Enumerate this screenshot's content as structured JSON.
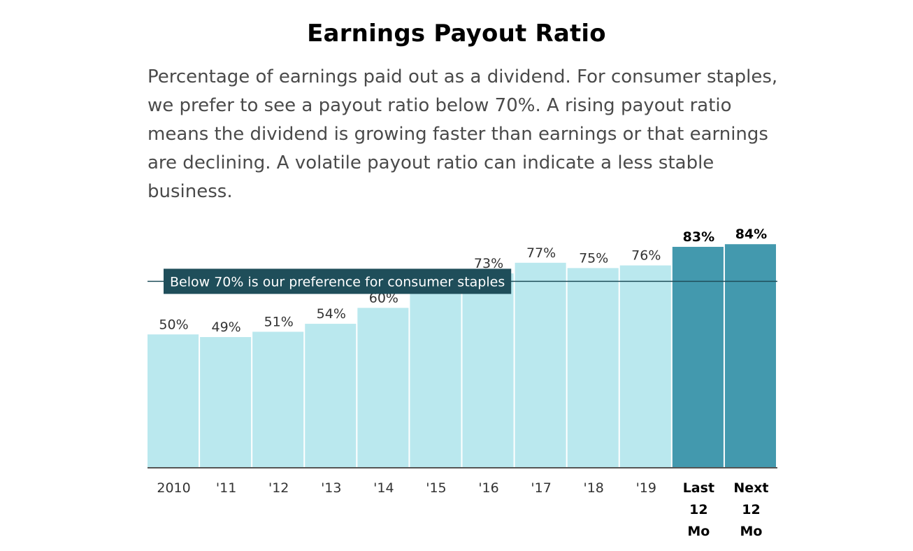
{
  "title": "Earnings Payout Ratio",
  "subtitle": "Percentage of earnings paid out as a dividend. For consumer staples, we prefer to see a payout ratio below 70%. A rising payout ratio means the dividend is growing faster than earnings or that earnings are declining. A volatile payout ratio can indicate a less stable business.",
  "chart_data": {
    "type": "bar",
    "categories": [
      "2010",
      "'11",
      "'12",
      "'13",
      "'14",
      "'15",
      "'16",
      "'17",
      "'18",
      "'19",
      "Last 12 Mo",
      "Next 12 Mo"
    ],
    "values": [
      50,
      49,
      51,
      54,
      60,
      70,
      73,
      77,
      75,
      76,
      83,
      84
    ],
    "value_labels": [
      "50%",
      "49%",
      "51%",
      "54%",
      "60%",
      "",
      "73%",
      "77%",
      "75%",
      "76%",
      "83%",
      "84%"
    ],
    "highlighted": [
      false,
      false,
      false,
      false,
      false,
      false,
      false,
      false,
      false,
      false,
      true,
      true
    ],
    "reference_line": {
      "value": 70,
      "label": "Below 70% is our preference for consumer staples"
    },
    "ylim": [
      0,
      85
    ],
    "xlabel": "",
    "ylabel": "",
    "grid": false,
    "colors": {
      "bar": "#bae8ee",
      "bar_highlight": "#4399ae",
      "reference": "#1f4e5a",
      "axis": "#555555",
      "label": "#333333"
    }
  }
}
